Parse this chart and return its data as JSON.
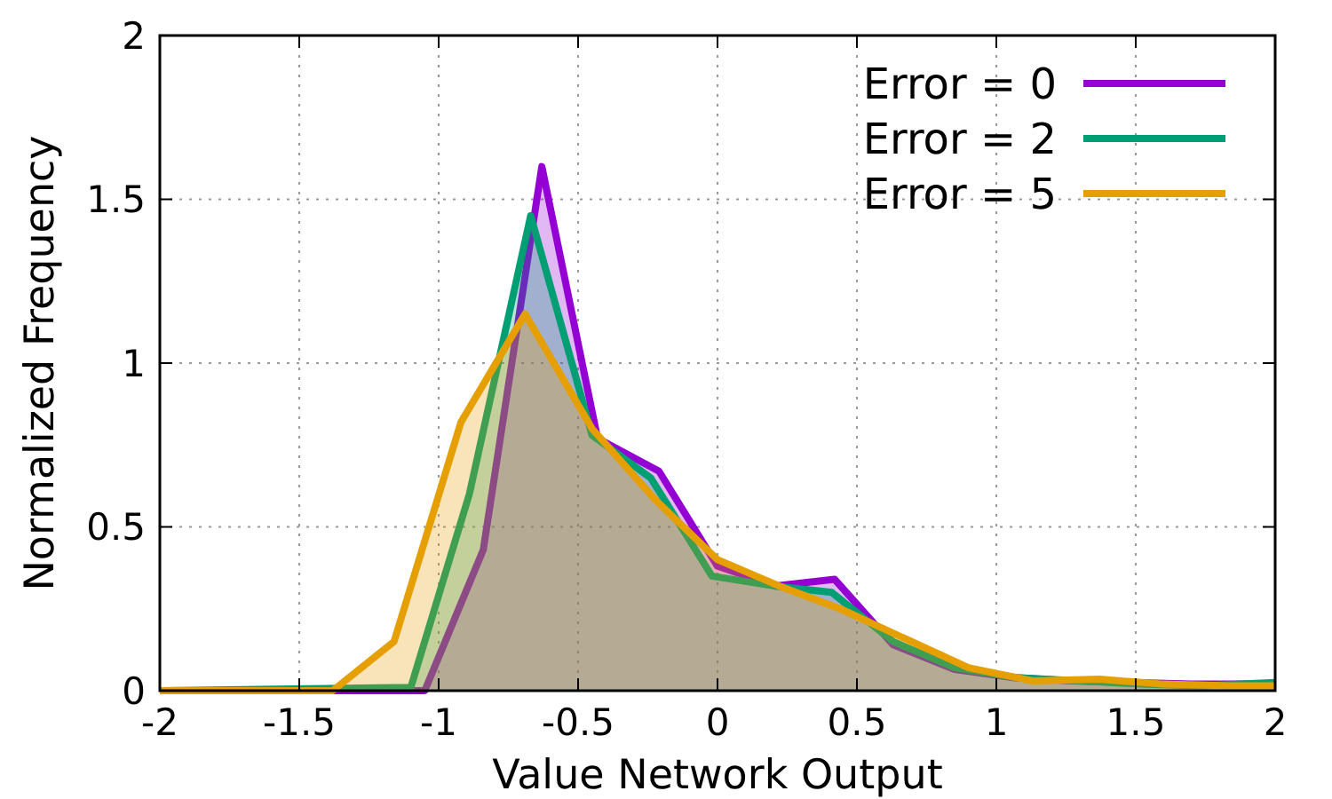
{
  "chart_data": {
    "type": "area",
    "xlabel": "Value Network Output",
    "ylabel": "Normalized Frequency",
    "xlim": [
      -2,
      2
    ],
    "xticks": [
      -2,
      -1.5,
      -1,
      -0.5,
      0,
      0.5,
      1,
      1.5,
      2
    ],
    "ylim": [
      0,
      2
    ],
    "yticks": [
      0,
      0.5,
      1,
      1.5,
      2
    ],
    "grid": true,
    "legend": "top right",
    "series": [
      {
        "name": "Error = 0",
        "color": "#9400d3",
        "x": [
          -2,
          -1.05,
          -0.84,
          -0.63,
          -0.43,
          -0.21,
          0,
          0.21,
          0.42,
          0.63,
          0.85,
          1.06,
          1.27,
          1.48,
          1.7,
          2
        ],
        "values": [
          0,
          0,
          0.43,
          1.6,
          0.77,
          0.67,
          0.38,
          0.32,
          0.34,
          0.14,
          0.065,
          0.04,
          0.03,
          0.025,
          0.02,
          0.02
        ]
      },
      {
        "name": "Error = 2",
        "color": "#009e73",
        "x": [
          -2,
          -1.1,
          -0.89,
          -0.67,
          -0.45,
          -0.24,
          -0.02,
          0.2,
          0.41,
          0.63,
          0.85,
          1.07,
          1.3,
          1.52,
          1.74,
          2
        ],
        "values": [
          0,
          0.01,
          0.6,
          1.45,
          0.78,
          0.65,
          0.35,
          0.32,
          0.3,
          0.15,
          0.07,
          0.04,
          0.03,
          0.02,
          0.015,
          0.025
        ]
      },
      {
        "name": "Error = 5",
        "color": "#e69f00",
        "x": [
          -2,
          -1.38,
          -1.16,
          -0.92,
          -0.69,
          -0.45,
          -0.22,
          0,
          0.22,
          0.44,
          0.67,
          0.9,
          1.13,
          1.37,
          1.6,
          1.84,
          2
        ],
        "values": [
          0,
          0,
          0.15,
          0.82,
          1.15,
          0.8,
          0.58,
          0.4,
          0.32,
          0.25,
          0.16,
          0.07,
          0.03,
          0.035,
          0.02,
          0.015,
          0.015
        ]
      }
    ]
  }
}
